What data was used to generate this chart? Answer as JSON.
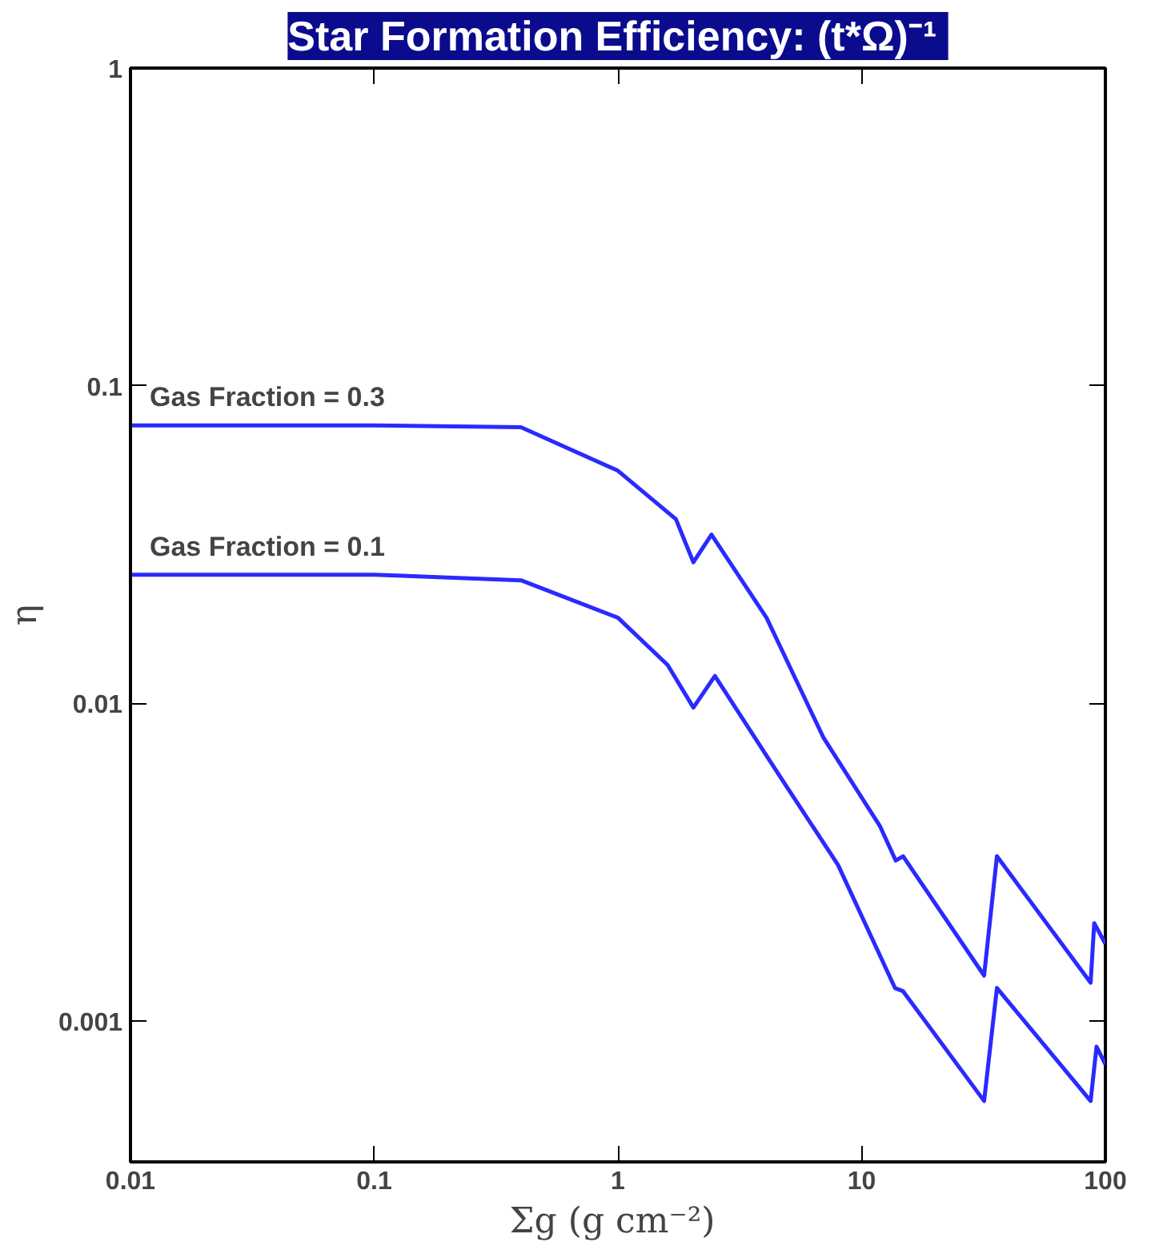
{
  "chart_data": {
    "type": "line",
    "title": "Star Formation Efficiency:  (t*Ω)⁻¹",
    "xlabel": "Σg  (g cm⁻²)",
    "ylabel": "η",
    "log": "xy",
    "xlim": [
      0.01,
      100
    ],
    "ylim": [
      0.00036,
      1
    ],
    "xticks": [
      0.01,
      0.1,
      1,
      10,
      100
    ],
    "yticks": [
      0.001,
      0.01,
      0.1,
      1
    ],
    "grid": false,
    "legend": false,
    "marker": "none",
    "line_style": "solid",
    "series": [
      {
        "name": "Gas Fraction = 0.3",
        "color": "#2a2aff",
        "x": [
          0.01,
          0.1,
          0.4,
          1.0,
          1.73,
          2.04,
          2.42,
          4.07,
          6.97,
          11.9,
          13.8,
          14.8,
          31.8,
          35.9,
          87,
          90,
          100
        ],
        "values": [
          0.075,
          0.075,
          0.074,
          0.054,
          0.038,
          0.0278,
          0.034,
          0.0186,
          0.0078,
          0.0041,
          0.0032,
          0.0033,
          0.00139,
          0.0033,
          0.00132,
          0.00203,
          0.00175
        ]
      },
      {
        "name": "Gas Fraction = 0.1",
        "color": "#2a2aff",
        "x": [
          0.01,
          0.1,
          0.4,
          1.0,
          1.6,
          2.04,
          2.5,
          4.68,
          8.0,
          13.7,
          14.8,
          31.8,
          35.9,
          87,
          92,
          100
        ],
        "values": [
          0.0254,
          0.0254,
          0.0244,
          0.0186,
          0.0132,
          0.0097,
          0.0122,
          0.0058,
          0.0031,
          0.00127,
          0.00124,
          0.00056,
          0.00127,
          0.00056,
          0.00083,
          0.00073
        ]
      }
    ]
  }
}
